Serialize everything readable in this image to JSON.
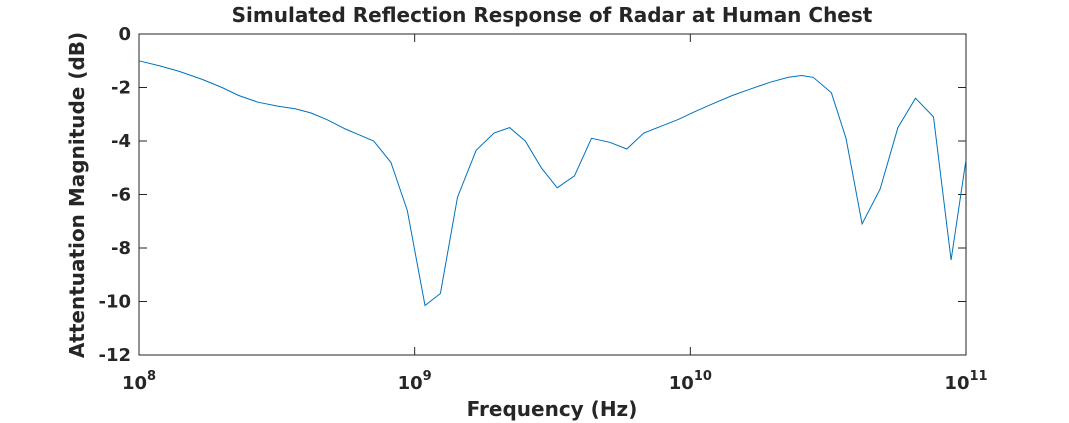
{
  "chart_data": {
    "type": "line",
    "title": "Simulated Reflection Response of Radar at Human Chest",
    "xlabel": "Frequency (Hz)",
    "ylabel": "Attentuation Magnitude (dB)",
    "x_scale": "log",
    "xlim": [
      100000000,
      100000000000
    ],
    "ylim": [
      -12,
      0
    ],
    "grid": false,
    "xticks": [
      {
        "value": 100000000,
        "base": "10",
        "exp": "8"
      },
      {
        "value": 1000000000,
        "base": "10",
        "exp": "9"
      },
      {
        "value": 10000000000,
        "base": "10",
        "exp": "10"
      },
      {
        "value": 100000000000,
        "base": "10",
        "exp": "11"
      }
    ],
    "yticks": [
      {
        "value": 0,
        "label": "0"
      },
      {
        "value": -2,
        "label": "-2"
      },
      {
        "value": -4,
        "label": "-4"
      },
      {
        "value": -6,
        "label": "-6"
      },
      {
        "value": -8,
        "label": "-8"
      },
      {
        "value": -10,
        "label": "-10"
      },
      {
        "value": -12,
        "label": "-12"
      }
    ],
    "series": [
      {
        "color": "#0072BD",
        "x": [
          100000000,
          120000000,
          140000000,
          170000000,
          200000000,
          230000000,
          270000000,
          320000000,
          370000000,
          420000000,
          480000000,
          560000000,
          640000000,
          710000000,
          820000000,
          940000000,
          1090000000,
          1240000000,
          1430000000,
          1670000000,
          1940000000,
          2210000000,
          2520000000,
          2880000000,
          3290000000,
          3800000000,
          4380000000,
          5100000000,
          5880000000,
          6780000000,
          7820000000,
          9020000000,
          10400000000,
          12100000000,
          14200000000,
          16600000000,
          19500000000,
          22700000000,
          25300000000,
          27900000000,
          32500000000,
          36700000000,
          42000000000,
          48800000000,
          56600000000,
          65600000000,
          76200000000,
          88300000000,
          100000000000
        ],
        "y": [
          -1.0,
          -1.2,
          -1.4,
          -1.7,
          -2.0,
          -2.3,
          -2.55,
          -2.7,
          -2.8,
          -2.95,
          -3.2,
          -3.55,
          -3.8,
          -4.0,
          -4.8,
          -6.6,
          -10.15,
          -9.7,
          -6.1,
          -4.35,
          -3.7,
          -3.5,
          -4.0,
          -5.0,
          -5.75,
          -5.3,
          -3.9,
          -4.05,
          -4.3,
          -3.7,
          -3.45,
          -3.2,
          -2.9,
          -2.6,
          -2.3,
          -2.05,
          -1.8,
          -1.62,
          -1.55,
          -1.62,
          -2.2,
          -3.9,
          -7.1,
          -5.8,
          -3.5,
          -2.4,
          -3.1,
          -8.45,
          -4.7
        ]
      }
    ]
  }
}
